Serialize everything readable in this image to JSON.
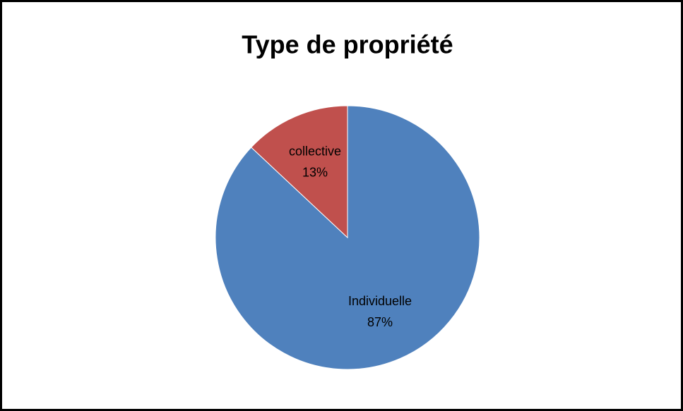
{
  "chart_data": {
    "type": "pie",
    "title": "Type de propriété",
    "categories": [
      "Individuelle",
      "collective"
    ],
    "values": [
      87,
      13
    ],
    "value_labels": [
      "87%",
      "13%"
    ],
    "colors": [
      "#4f81bd",
      "#c0504d"
    ]
  }
}
